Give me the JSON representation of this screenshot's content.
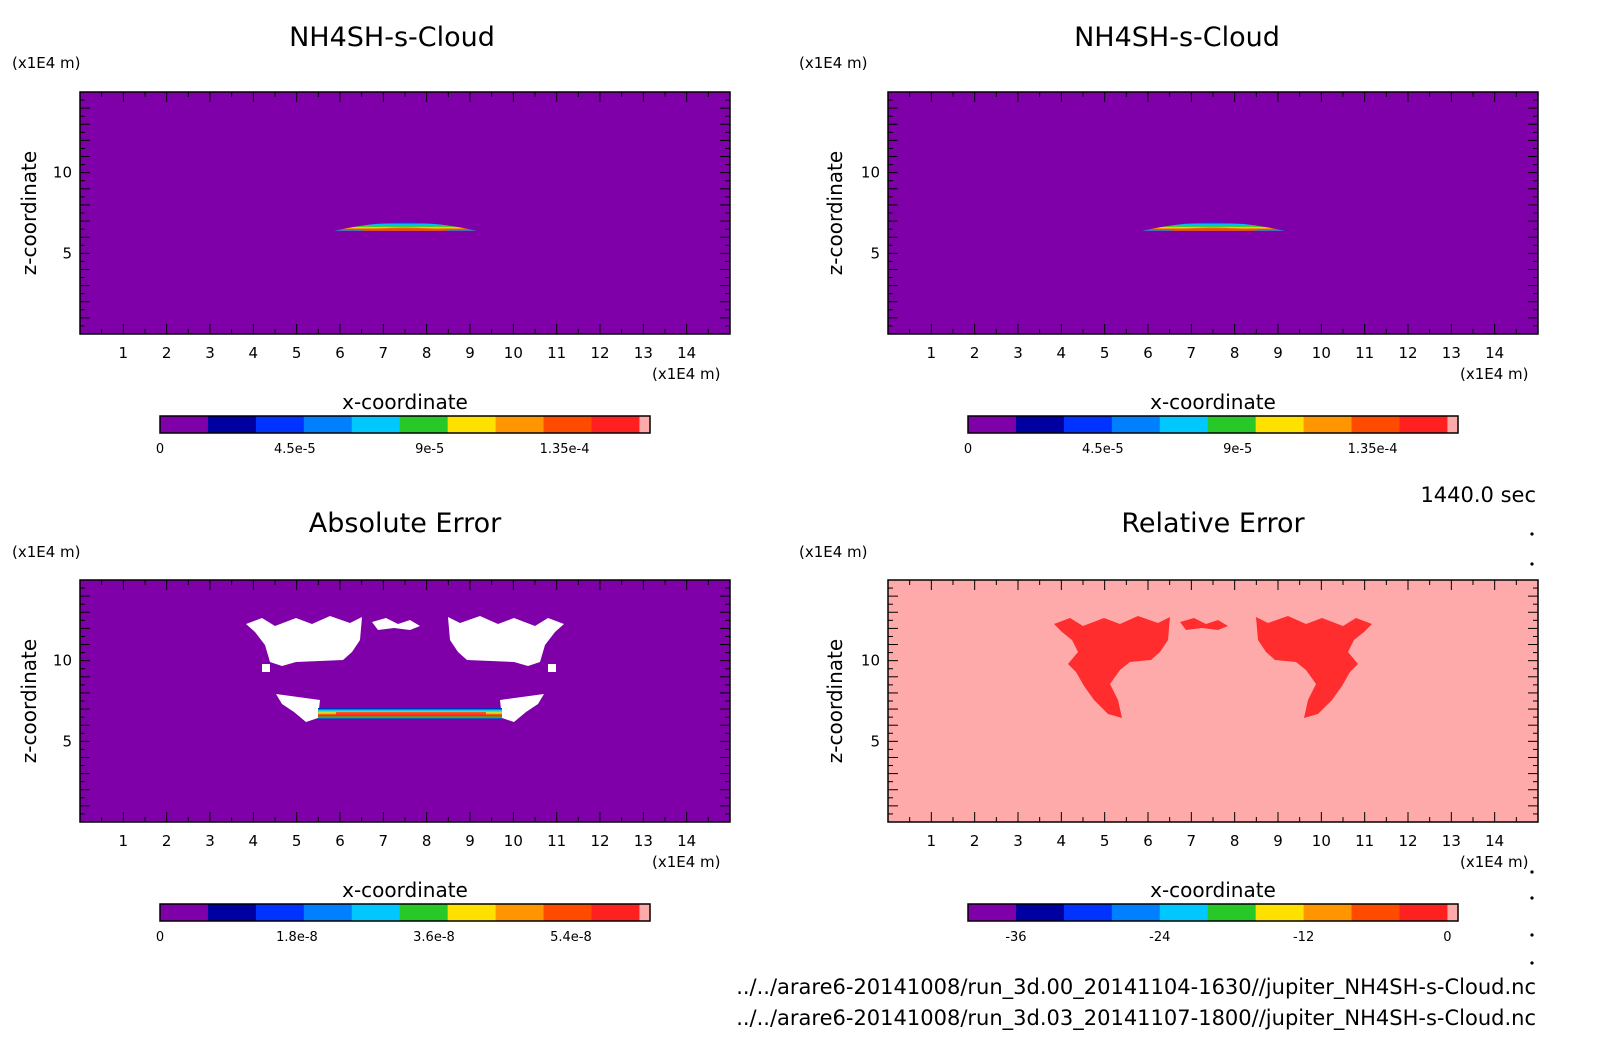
{
  "colors": {
    "scale": [
      "#7f00a8",
      "#0000a0",
      "#0033ff",
      "#0080ff",
      "#00c8ff",
      "#28c828",
      "#ffe100",
      "#ff9600",
      "#ff4b00",
      "#ff2020",
      "#ffaaaa"
    ],
    "background_field": "#7f00a8",
    "error_white": "#ffffff",
    "relative_background": "#ffaaaa",
    "relative_patch": "#ff2d2d"
  },
  "time_label": "1440.0 sec",
  "files": [
    "../../arare6-20141008/run_3d.00_20141104-1630//jupiter_NH4SH-s-Cloud.nc",
    "../../arare6-20141008/run_3d.03_20141107-1800//jupiter_NH4SH-s-Cloud.nc"
  ],
  "chart_data": [
    {
      "type": "heatmap",
      "title": "NH4SH-s-Cloud",
      "xlabel": "x-coordinate",
      "ylabel": "z-coordinate",
      "x_unit": "(x1E4 m)",
      "y_unit": "(x1E4 m)",
      "xlim": [
        0,
        15
      ],
      "ylim": [
        0,
        15
      ],
      "x_ticks": [
        "1",
        "2",
        "3",
        "4",
        "5",
        "6",
        "7",
        "8",
        "9",
        "10",
        "11",
        "12",
        "13",
        "14"
      ],
      "y_ticks": [
        "5",
        "10"
      ],
      "colorbar": {
        "min": 0,
        "max": 0.00016,
        "levels": 10,
        "tick_labels": [
          "0",
          "4.5e-5",
          "9e-5",
          "1.35e-4"
        ],
        "tick_values": [
          0,
          4.5e-05,
          9e-05,
          0.000135
        ]
      },
      "features": [
        {
          "kind": "cloud-layer",
          "x_center": 7.5,
          "z_center": 6.4,
          "half_width": 1.65,
          "thickness": 0.3,
          "peak": 0.00015
        }
      ]
    },
    {
      "type": "heatmap",
      "title": "NH4SH-s-Cloud",
      "xlabel": "x-coordinate",
      "ylabel": "z-coordinate",
      "x_unit": "(x1E4 m)",
      "y_unit": "(x1E4 m)",
      "xlim": [
        0,
        15
      ],
      "ylim": [
        0,
        15
      ],
      "x_ticks": [
        "1",
        "2",
        "3",
        "4",
        "5",
        "6",
        "7",
        "8",
        "9",
        "10",
        "11",
        "12",
        "13",
        "14"
      ],
      "y_ticks": [
        "5",
        "10"
      ],
      "colorbar": {
        "min": 0,
        "max": 0.00016,
        "levels": 10,
        "tick_labels": [
          "0",
          "4.5e-5",
          "9e-5",
          "1.35e-4"
        ],
        "tick_values": [
          0,
          4.5e-05,
          9e-05,
          0.000135
        ]
      },
      "features": [
        {
          "kind": "cloud-layer",
          "x_center": 7.5,
          "z_center": 6.4,
          "half_width": 1.65,
          "thickness": 0.3,
          "peak": 0.00015
        }
      ]
    },
    {
      "type": "heatmap",
      "title": "Absolute Error",
      "xlabel": "x-coordinate",
      "ylabel": "z-coordinate",
      "x_unit": "(x1E4 m)",
      "y_unit": "(x1E4 m)",
      "xlim": [
        0,
        15
      ],
      "ylim": [
        0,
        15
      ],
      "x_ticks": [
        "1",
        "2",
        "3",
        "4",
        "5",
        "6",
        "7",
        "8",
        "9",
        "10",
        "11",
        "12",
        "13",
        "14"
      ],
      "y_ticks": [
        "5",
        "10"
      ],
      "colorbar": {
        "min": 0,
        "max": 6.3e-08,
        "levels": 10,
        "tick_labels": [
          "0",
          "1.8e-8",
          "3.6e-8",
          "5.4e-8"
        ],
        "tick_values": [
          0,
          1.8e-08,
          3.6e-08,
          5.4e-08
        ]
      },
      "features": [
        {
          "kind": "missing-region",
          "x_range": [
            3.9,
            11.2
          ],
          "z_range": [
            6.3,
            12.4
          ]
        },
        {
          "kind": "error-band",
          "x_range": [
            5.5,
            9.7
          ],
          "z_range": [
            6.2,
            6.9
          ],
          "peak": 6e-08
        }
      ]
    },
    {
      "type": "heatmap",
      "title": "Relative Error",
      "xlabel": "x-coordinate",
      "ylabel": "z-coordinate",
      "x_unit": "(x1E4 m)",
      "y_unit": "(x1E4 m)",
      "xlim": [
        0,
        15
      ],
      "ylim": [
        0,
        15
      ],
      "x_ticks": [
        "1",
        "2",
        "3",
        "4",
        "5",
        "6",
        "7",
        "8",
        "9",
        "10",
        "11",
        "12",
        "13",
        "14"
      ],
      "y_ticks": [
        "5",
        "10"
      ],
      "colorbar": {
        "min": -40,
        "max": 0,
        "levels": 10,
        "tick_labels": [
          "-36",
          "-24",
          "-12",
          "0"
        ],
        "tick_values": [
          -36,
          -24,
          -12,
          0
        ]
      },
      "features": [
        {
          "kind": "error-patch",
          "x_range": [
            4.0,
            6.5
          ],
          "z_range": [
            6.3,
            12.4
          ],
          "value": -2
        },
        {
          "kind": "error-patch",
          "x_range": [
            8.8,
            11.3
          ],
          "z_range": [
            6.3,
            12.4
          ],
          "value": -2
        }
      ]
    }
  ]
}
